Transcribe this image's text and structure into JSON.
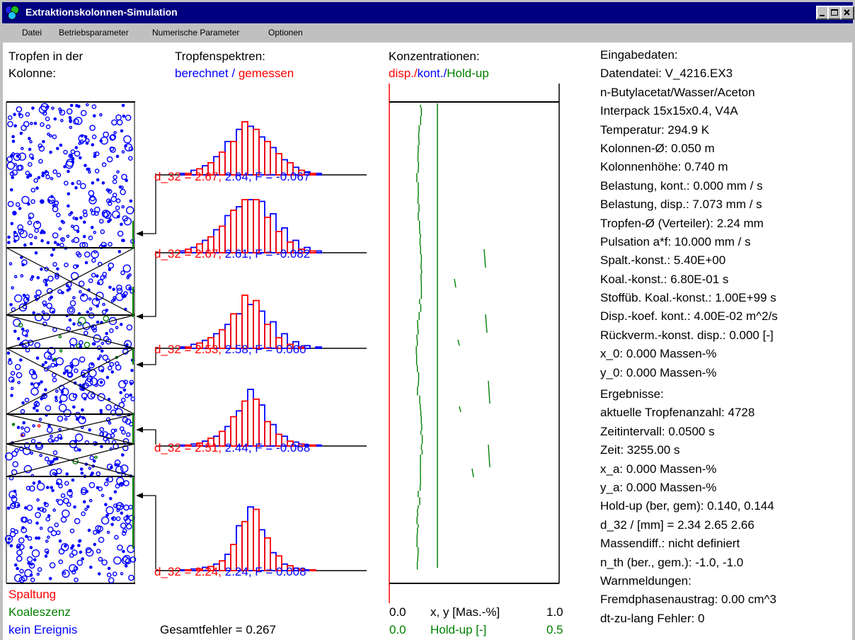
{
  "window": {
    "title": "Extraktionskolonnen-Simulation"
  },
  "menu": [
    "Datei",
    "Betriebsparameter",
    "Numerische Parameter",
    "Optionen"
  ],
  "left_panel": {
    "title_line1": "Tropfen in der",
    "title_line2": "Kolonne:"
  },
  "spectra_panel": {
    "title": "Tropfenspektren:",
    "legend_computed": "berechnet",
    "legend_sep": "/",
    "legend_measured": "gemessen",
    "hist_labels": [
      {
        "prefix": "d_32 = 2.67,",
        "suffix": " 2.64, F = -0.067"
      },
      {
        "prefix": "d_32 = 2.67,",
        "suffix": " 2.61, F = -0.082"
      },
      {
        "prefix": "d_32 = 2.53,",
        "suffix": " 2.58, F = 0.060"
      },
      {
        "prefix": "d_32 = 2.51,",
        "suffix": " 2.44, F = -0.068"
      },
      {
        "prefix": "d_32 = 2.24,",
        "suffix": " 2.24, F = 0.008"
      }
    ]
  },
  "conc_panel": {
    "title": "Konzentrationen:",
    "legend_disp": "disp./",
    "legend_kont": "kont./",
    "legend_holdup": "Hold-up",
    "axis1_min": "0.0",
    "axis1_label": "x, y [Mas.-%]",
    "axis1_max": "1.0",
    "axis2_min": "0.0",
    "axis2_label": "Hold-up [-]",
    "axis2_max": "0.5"
  },
  "legend": {
    "split": "Spaltung",
    "coal": "Koaleszenz",
    "none": "kein Ereignis"
  },
  "total_error": "Gesamtfehler = 0.267",
  "input_data": [
    "Eingabedaten:",
    "Datendatei: V_4216.EX3",
    "n-Butylacetat/Wasser/Aceton",
    "Interpack 15x15x0.4, V4A",
    "Temperatur: 294.9 K",
    "Kolonnen-Ø: 0.050 m",
    "Kolonnenhöhe: 0.740 m",
    "Belastung, kont.: 0.000 mm / s",
    "Belastung, disp.: 7.073 mm / s",
    "Tropfen-Ø (Verteiler): 2.24 mm",
    "Pulsation a*f: 10.000 mm / s",
    "Spalt.-konst.: 5.40E+00",
    "Koal.-konst.: 6.80E-01 s",
    "Stoffüb. Koal.-konst.: 1.00E+99 s",
    "Disp.-koef. kont.: 4.00E-02 m^2/s",
    "Rückverm.-konst. disp.: 0.000 [-]",
    "x_0: 0.000 Massen-%",
    "y_0: 0.000 Massen-%"
  ],
  "results": [
    "Ergebnisse:",
    "aktuelle Tropfenanzahl: 4728",
    "Zeitintervall: 0.0500 s",
    "Zeit: 3255.00 s",
    "x_a: 0.000 Massen-%",
    "y_a: 0.000 Massen-%",
    "Hold-up (ber, gem): 0.140, 0.144",
    "d_32 / [mm] = 2.34 2.65 2.66",
    "Massendiff.: nicht definiert",
    "n_th (ber., gem.): -1.0, -1.0",
    "Warnmeldungen:",
    "Fremdphasenaustrag: 0.00 cm^3",
    "dt-zu-lang Fehler: 0"
  ],
  "histograms": [
    {
      "blue": [
        1,
        3,
        6,
        12,
        22,
        30,
        32,
        25,
        18,
        10,
        5,
        2,
        1,
        0,
        0,
        0
      ],
      "red": [
        1,
        4,
        8,
        15,
        22,
        35,
        30,
        22,
        14,
        8,
        3,
        1,
        0,
        0,
        0,
        0
      ]
    },
    {
      "blue": [
        1,
        3,
        7,
        13,
        21,
        26,
        30,
        29,
        22,
        14,
        7,
        3,
        1,
        0,
        0,
        0
      ],
      "red": [
        2,
        5,
        9,
        15,
        24,
        30,
        30,
        20,
        12,
        6,
        2,
        1,
        0,
        0,
        0,
        0
      ]
    },
    {
      "blue": [
        1,
        3,
        6,
        11,
        18,
        26,
        33,
        28,
        20,
        11,
        5,
        2,
        1,
        0,
        0,
        0
      ],
      "red": [
        1,
        4,
        8,
        14,
        26,
        40,
        36,
        18,
        8,
        3,
        1,
        0,
        0,
        0,
        0,
        0
      ]
    },
    {
      "blue": [
        1,
        2,
        5,
        10,
        20,
        36,
        58,
        42,
        22,
        10,
        4,
        1,
        1,
        0,
        0,
        0
      ],
      "red": [
        1,
        3,
        8,
        15,
        30,
        46,
        48,
        25,
        12,
        5,
        2,
        1,
        0,
        0,
        0,
        0
      ]
    },
    {
      "blue": [
        1,
        2,
        4,
        8,
        20,
        55,
        78,
        50,
        22,
        8,
        3,
        1,
        0,
        0,
        0,
        0
      ],
      "red": [
        1,
        2,
        5,
        12,
        32,
        60,
        75,
        40,
        18,
        6,
        2,
        1,
        0,
        0,
        0,
        0
      ]
    }
  ],
  "colors": {
    "title_bar": "#000080",
    "computed": "#0000ff",
    "measured": "#ff0000",
    "coalescence": "#008000",
    "window_bg": "#c0c0c0"
  }
}
